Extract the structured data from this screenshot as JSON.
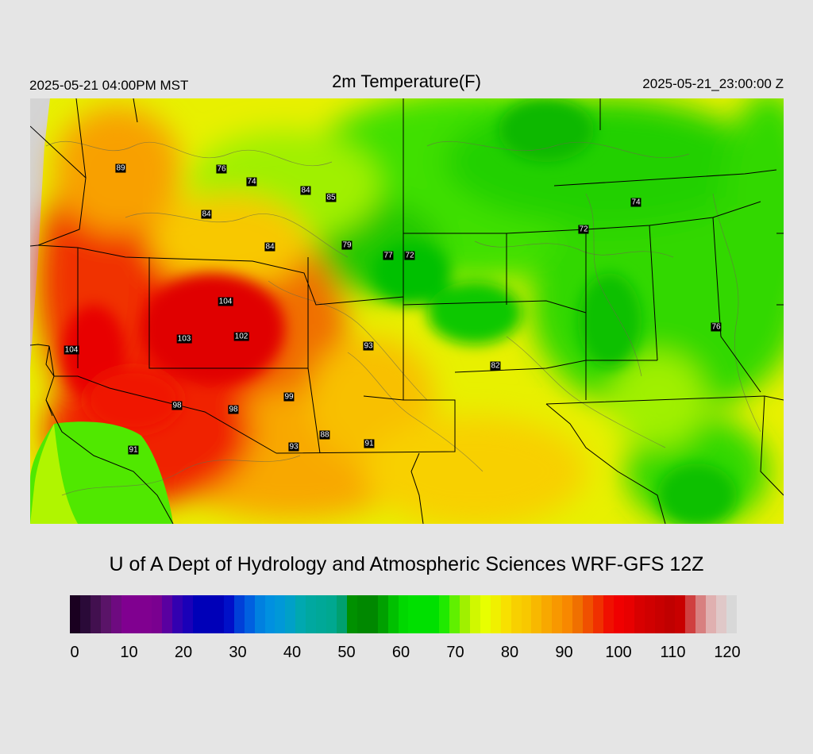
{
  "header": {
    "local_time": "2025-05-21 04:00PM MST",
    "title": "2m Temperature(F)",
    "valid_time": "2025-05-21_23:00:00 Z"
  },
  "map": {
    "variable": "2m Temperature",
    "unit": "F",
    "background_color": "#d4d4d4",
    "border_color": "#000000",
    "contour_color": "#6b6b4a",
    "stations": [
      {
        "value": "89",
        "name": "label-89"
      },
      {
        "value": "76",
        "name": "label-76-a"
      },
      {
        "value": "74",
        "name": "label-74-a"
      },
      {
        "value": "84",
        "name": "label-84-a"
      },
      {
        "value": "85",
        "name": "label-85"
      },
      {
        "value": "84",
        "name": "label-84-b"
      },
      {
        "value": "84",
        "name": "label-84-c"
      },
      {
        "value": "79",
        "name": "label-79"
      },
      {
        "value": "77",
        "name": "label-77"
      },
      {
        "value": "72",
        "name": "label-72-a"
      },
      {
        "value": "74",
        "name": "label-74-b"
      },
      {
        "value": "72",
        "name": "label-72-b"
      },
      {
        "value": "104",
        "name": "label-104-a"
      },
      {
        "value": "103",
        "name": "label-103"
      },
      {
        "value": "102",
        "name": "label-102"
      },
      {
        "value": "104",
        "name": "label-104-b"
      },
      {
        "value": "93",
        "name": "label-93-a"
      },
      {
        "value": "76",
        "name": "label-76-b"
      },
      {
        "value": "82",
        "name": "label-82"
      },
      {
        "value": "99",
        "name": "label-99"
      },
      {
        "value": "98",
        "name": "label-98-a"
      },
      {
        "value": "98",
        "name": "label-98-b"
      },
      {
        "value": "88",
        "name": "label-88"
      },
      {
        "value": "91",
        "name": "label-91-a"
      },
      {
        "value": "93",
        "name": "label-93-b"
      },
      {
        "value": "91",
        "name": "label-91-b"
      }
    ]
  },
  "footer": {
    "credit": "U of A Dept of Hydrology and Atmospheric Sciences WRF-GFS 12Z"
  },
  "colorbar": {
    "min": 0,
    "max": 120,
    "tick_labels": [
      "0",
      "10",
      "20",
      "30",
      "40",
      "50",
      "60",
      "70",
      "80",
      "90",
      "100",
      "110",
      "120"
    ],
    "colors": [
      "#1a0020",
      "#2a0a38",
      "#42104f",
      "#5a1468",
      "#6e0a80",
      "#800090",
      "#800090",
      "#800090",
      "#7a0090",
      "#5a00a0",
      "#3300b0",
      "#1a00b8",
      "#0000b8",
      "#0000b8",
      "#0000b8",
      "#0010c8",
      "#0040d8",
      "#0060e0",
      "#0080e0",
      "#0090e0",
      "#0098d8",
      "#00a0c8",
      "#00a8b0",
      "#00a8a0",
      "#00a898",
      "#00a890",
      "#00a070",
      "#009000",
      "#008800",
      "#008800",
      "#00a000",
      "#00c000",
      "#00d800",
      "#00e000",
      "#00e000",
      "#00e000",
      "#20ea00",
      "#60f000",
      "#a0f000",
      "#d0f800",
      "#e8ff00",
      "#f0f000",
      "#f8e000",
      "#f8d000",
      "#f8c800",
      "#f8b800",
      "#f8a800",
      "#f89800",
      "#f88800",
      "#f07000",
      "#f05000",
      "#f03000",
      "#f01000",
      "#f00000",
      "#e80000",
      "#d80000",
      "#d00000",
      "#c80000",
      "#c00000",
      "#c80000",
      "#d04040",
      "#d88080",
      "#e0b0b0",
      "#e0c8c8",
      "#d8d8d8"
    ]
  }
}
